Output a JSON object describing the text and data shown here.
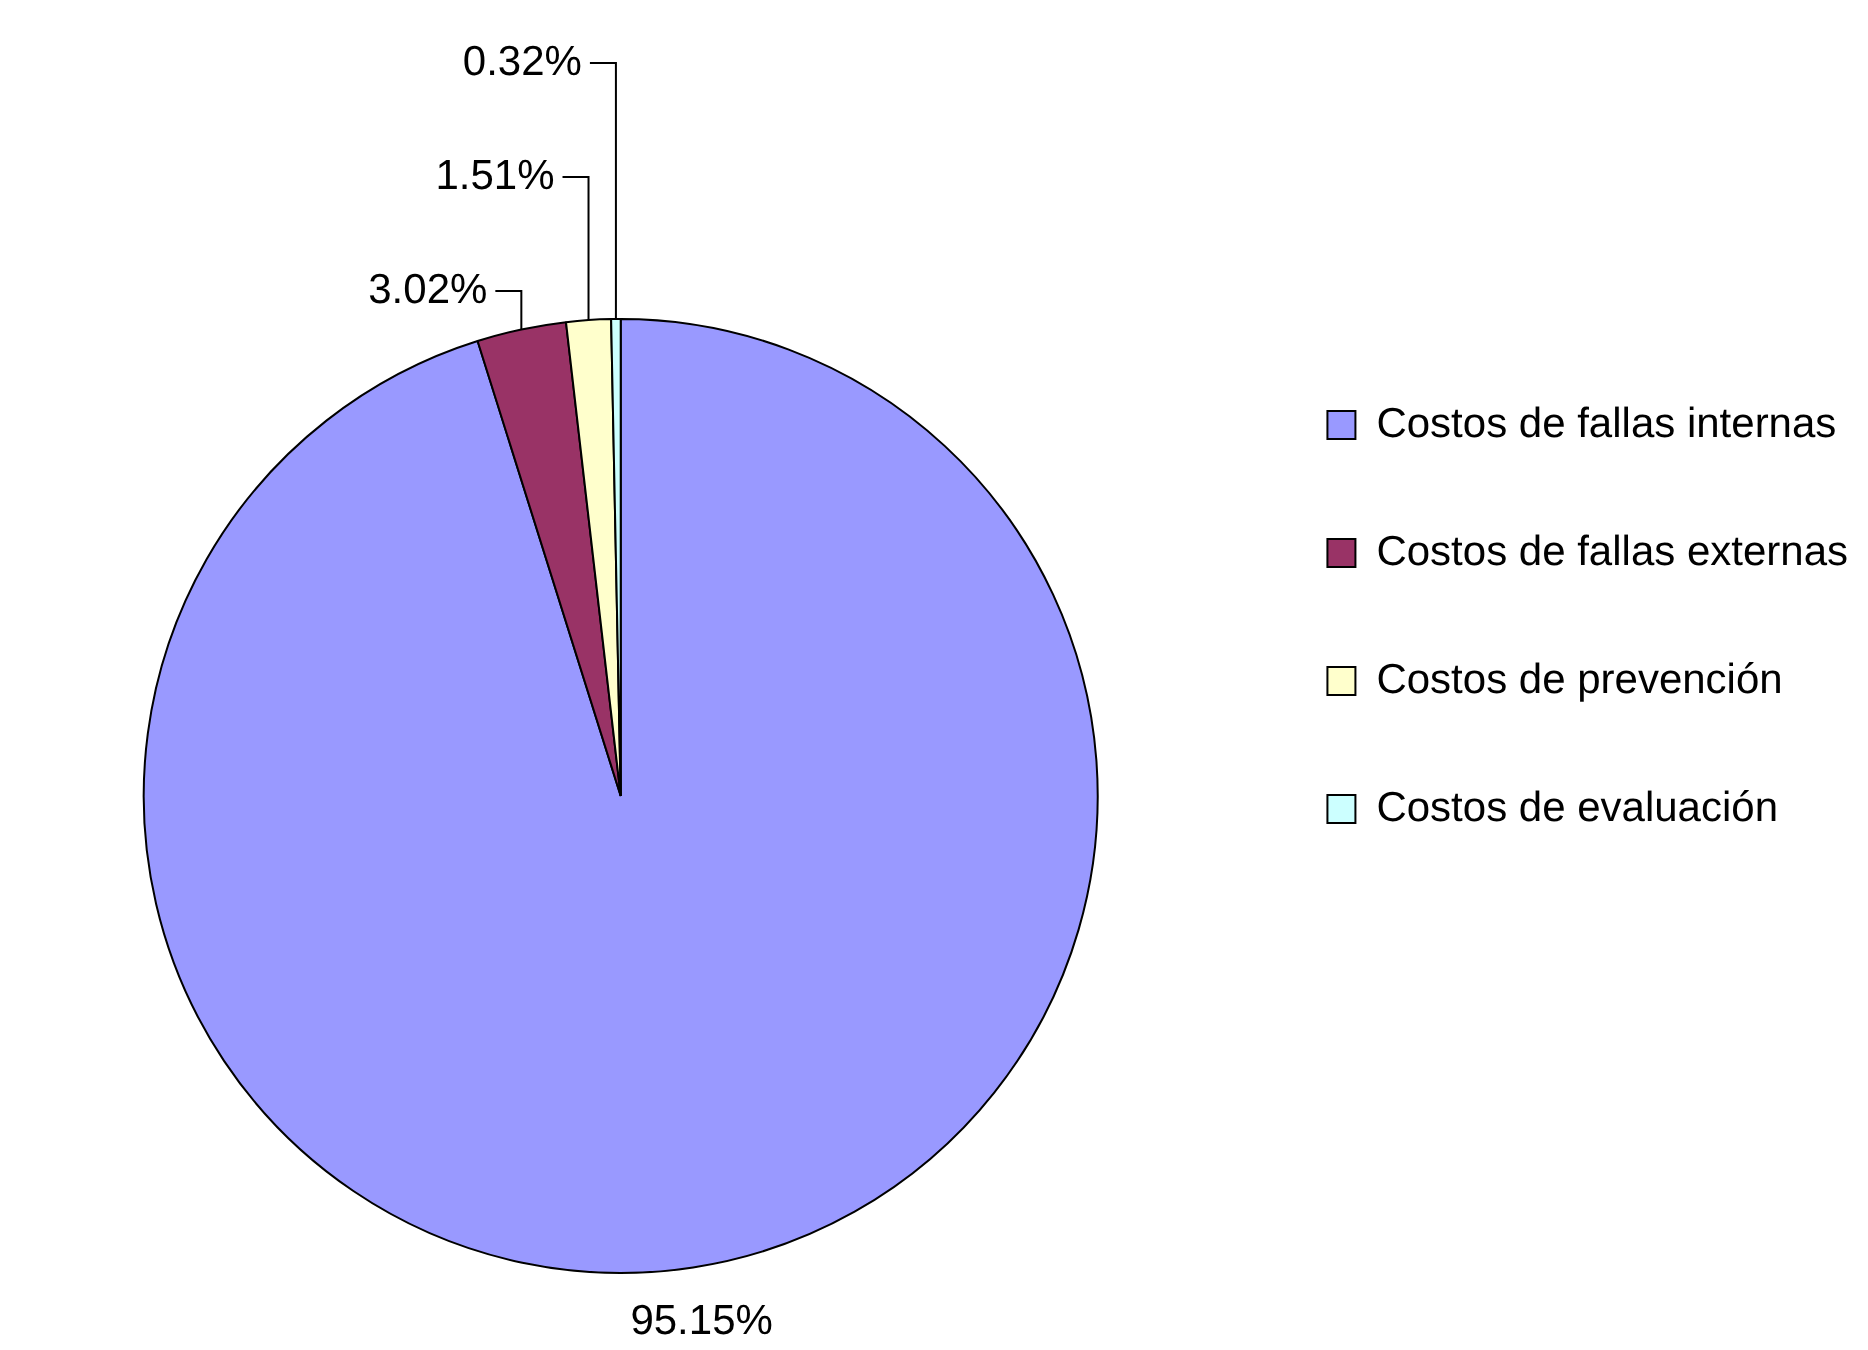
{
  "chart_data": {
    "type": "pie",
    "categories": [
      "Costos de fallas internas",
      "Costos de fallas externas",
      "Costos de prevención",
      "Costos de evaluación"
    ],
    "values": [
      95.15,
      3.02,
      1.51,
      0.32
    ],
    "colors": [
      "#9999ff",
      "#993366",
      "#ffffcc",
      "#ccffff"
    ],
    "value_labels": [
      "95.15%",
      "3.02%",
      "1.51%",
      "0.32%"
    ],
    "legend": "right"
  }
}
